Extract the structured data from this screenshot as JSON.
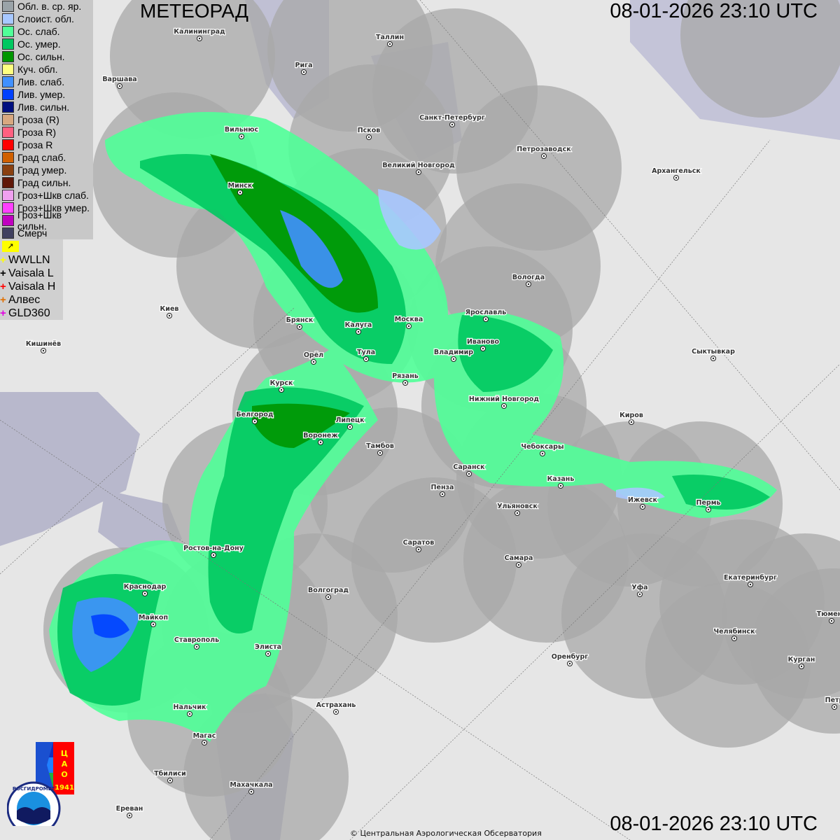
{
  "header": {
    "title": "МЕТЕОРАД",
    "timestamp": "08-01-2026  23:10 UTC"
  },
  "footer": {
    "timestamp": "08-01-2026  23:10 UTC",
    "copyright": "© Центральная Аэрологическая Обсерватория"
  },
  "legend": [
    {
      "label": "Обл. в. ср. яр.",
      "color": "#9aa3a8"
    },
    {
      "label": "Слоист. обл.",
      "color": "#a8c8ff"
    },
    {
      "label": "Ос. слаб.",
      "color": "#50ff98"
    },
    {
      "label": "Ос. умер.",
      "color": "#00c860"
    },
    {
      "label": "Ос. сильн.",
      "color": "#009600"
    },
    {
      "label": "Куч. обл.",
      "color": "#ffff80"
    },
    {
      "label": "Лив. слаб.",
      "color": "#4090ff"
    },
    {
      "label": "Лив. умер.",
      "color": "#0040ff"
    },
    {
      "label": "Лив. сильн.",
      "color": "#001080"
    },
    {
      "label": "Гроза (R)",
      "color": "#d8a880"
    },
    {
      "label": "Гроза R)",
      "color": "#ff6080"
    },
    {
      "label": "Гроза R",
      "color": "#ff0000"
    },
    {
      "label": "Град слаб.",
      "color": "#d06000"
    },
    {
      "label": "Град умер.",
      "color": "#8a4010"
    },
    {
      "label": "Град сильн.",
      "color": "#601808"
    },
    {
      "label": "Гроз+Шкв слаб.",
      "color": "#f0a0f0"
    },
    {
      "label": "Гроз+Шкв умер.",
      "color": "#ff40ff"
    },
    {
      "label": "Гроз+Шкв сильн.",
      "color": "#c000c0"
    },
    {
      "label": "Смерч",
      "color": "#404060"
    }
  ],
  "lightning": {
    "flag_icon": "lightning-flag-icon",
    "items": [
      {
        "label": "WWLLN",
        "color": "#ffff00"
      },
      {
        "label": "Vaisala L",
        "color": "#000000"
      },
      {
        "label": "Vaisala H",
        "color": "#ff0000"
      },
      {
        "label": "Алвес",
        "color": "#e07000"
      },
      {
        "label": "GLD360",
        "color": "#e000e0"
      }
    ]
  },
  "logos": {
    "cao": "ЦАО 1941",
    "roshydromet": "РОСГИДРОМЕТ ROSHYDROMET"
  },
  "cities": [
    "Калининград",
    "Таллин",
    "Рига",
    "Варшава",
    "Санкт-Петербург",
    "Вильнюс",
    "Псков",
    "Великий Новгород",
    "Петрозаводск",
    "Архангельск",
    "Минск",
    "Вологда",
    "Киев",
    "Брянск",
    "Калуга",
    "Москва",
    "Ярославль",
    "Иваново",
    "Кишинёв",
    "Сыктывкар",
    "Орёл",
    "Тула",
    "Владимир",
    "Рязань",
    "Курск",
    "Нижний Новгород",
    "Киров",
    "Белгород",
    "Липецк",
    "Воронеж",
    "Тамбов",
    "Чебоксары",
    "Саранск",
    "Казань",
    "Пенза",
    "Ижевск",
    "Пермь",
    "Ульяновск",
    "Саратов",
    "Ростов-на-Дону",
    "Самара",
    "Екатеринбург",
    "Краснодар",
    "Волгоград",
    "Уфа",
    "Майкоп",
    "Тюмень",
    "Челябинск",
    "Ставрополь",
    "Элиста",
    "Оренбург",
    "Курган",
    "Астрахань",
    "Нальчик",
    "Магас",
    "Тбилиси",
    "Махачкала",
    "Ереван",
    "Петр"
  ]
}
